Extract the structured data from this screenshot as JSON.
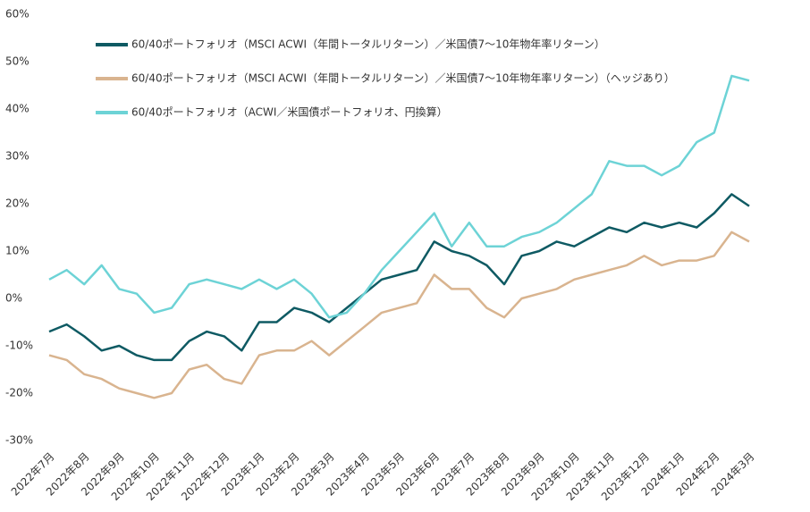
{
  "chart_data": {
    "type": "line",
    "x": [
      0,
      0.5,
      1,
      1.5,
      2,
      2.5,
      3,
      3.5,
      4,
      4.5,
      5,
      5.5,
      6,
      6.5,
      7,
      7.5,
      8,
      8.5,
      9,
      9.5,
      10,
      10.5,
      11,
      11.5,
      12,
      12.5,
      13,
      13.5,
      14,
      14.5,
      15,
      15.5,
      16,
      16.5,
      17,
      17.5,
      18,
      18.5,
      19,
      19.5,
      20
    ],
    "series": [
      {
        "name": "60/40ポートフォリオ（MSCI ACWI（年間トータルリターン）／米国債7～10年物年率リターン）",
        "color": "#0e5a63",
        "values": [
          -7,
          -5.5,
          -8,
          -11,
          -10,
          -12,
          -13,
          -13,
          -9,
          -7,
          -8,
          -11,
          -5,
          -5,
          -2,
          -3,
          -5,
          -2,
          1,
          4,
          5,
          6,
          12,
          10,
          9,
          7,
          3,
          9,
          10,
          12,
          11,
          13,
          15,
          14,
          16,
          15,
          16,
          15,
          18,
          22,
          19.5
        ]
      },
      {
        "name": "60/40ポートフォリオ（MSCI ACWI（年間トータルリターン）／米国債7～10年物年率リターン）（ヘッジあり）",
        "color": "#d9b48f",
        "values": [
          -12,
          -13,
          -16,
          -17,
          -19,
          -20,
          -21,
          -20,
          -15,
          -14,
          -17,
          -18,
          -12,
          -11,
          -11,
          -9,
          -12,
          -9,
          -6,
          -3,
          -2,
          -1,
          5,
          2,
          2,
          -2,
          -4,
          0,
          1,
          2,
          4,
          5,
          6,
          7,
          9,
          7,
          8,
          8,
          9,
          14,
          12
        ]
      },
      {
        "name": "60/40ポートフォリオ（ACWI／米国債ポートフォリオ、円換算）",
        "color": "#6dd3d6",
        "values": [
          4,
          6,
          3,
          7,
          2,
          1,
          -3,
          -2,
          3,
          4,
          3,
          2,
          4,
          2,
          4,
          1,
          -4,
          -3,
          1,
          6,
          10,
          14,
          18,
          11,
          16,
          11,
          11,
          13,
          14,
          16,
          19,
          22,
          29,
          28,
          28,
          26,
          28,
          33,
          35,
          47,
          46
        ]
      }
    ],
    "xlim": [
      0,
      20
    ],
    "xticks": [
      {
        "value": 0,
        "label": "2022年7月"
      },
      {
        "value": 1,
        "label": "2022年8月"
      },
      {
        "value": 2,
        "label": "2022年9月"
      },
      {
        "value": 3,
        "label": "2022年10月"
      },
      {
        "value": 4,
        "label": "2022年11月"
      },
      {
        "value": 5,
        "label": "2022年12月"
      },
      {
        "value": 6,
        "label": "2023年1月"
      },
      {
        "value": 7,
        "label": "2023年2月"
      },
      {
        "value": 8,
        "label": "2023年3月"
      },
      {
        "value": 9,
        "label": "2023年4月"
      },
      {
        "value": 10,
        "label": "2023年5月"
      },
      {
        "value": 11,
        "label": "2023年6月"
      },
      {
        "value": 12,
        "label": "2023年7月"
      },
      {
        "value": 13,
        "label": "2023年8月"
      },
      {
        "value": 14,
        "label": "2023年9月"
      },
      {
        "value": 15,
        "label": "2023年10月"
      },
      {
        "value": 16,
        "label": "2023年11月"
      },
      {
        "value": 17,
        "label": "2023年12月"
      },
      {
        "value": 18,
        "label": "2024年1月"
      },
      {
        "value": 19,
        "label": "2024年2月"
      },
      {
        "value": 20,
        "label": "2024年3月"
      }
    ],
    "ylim": [
      -30,
      60
    ],
    "yticks": [
      {
        "value": -30,
        "label": "-30%"
      },
      {
        "value": -20,
        "label": "-20%"
      },
      {
        "value": -10,
        "label": "-10%"
      },
      {
        "value": 0,
        "label": "0%"
      },
      {
        "value": 10,
        "label": "10%"
      },
      {
        "value": 20,
        "label": "20%"
      },
      {
        "value": 30,
        "label": "30%"
      },
      {
        "value": 40,
        "label": "40%"
      },
      {
        "value": 50,
        "label": "50%"
      },
      {
        "value": 60,
        "label": "60%"
      }
    ],
    "grid": false,
    "legend": "top-left"
  }
}
